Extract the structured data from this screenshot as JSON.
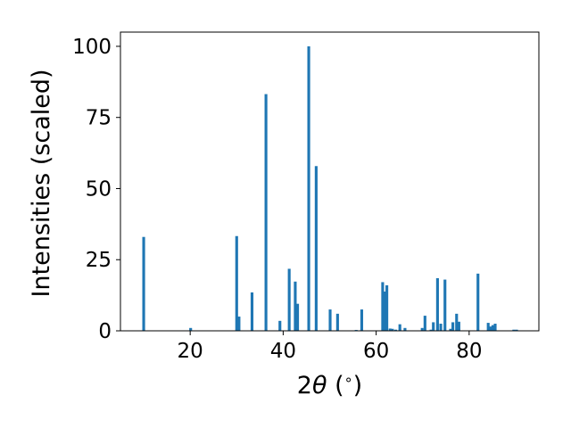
{
  "chart_data": {
    "type": "bar",
    "xlabel_prefix": "2",
    "xlabel_theta": "θ",
    "xlabel_suffix": " (",
    "xlabel_degree": "∘",
    "xlabel_close": ")",
    "ylabel": "Intensities (scaled)",
    "xlim": [
      5,
      95
    ],
    "ylim": [
      0,
      105
    ],
    "x_ticks": [
      20,
      40,
      60,
      80
    ],
    "y_ticks": [
      0,
      25,
      50,
      75,
      100
    ],
    "bar_width_data": 0.6,
    "bar_color": "#1f77b4",
    "grid": false,
    "x": [
      10.0,
      20.1,
      30.0,
      30.5,
      33.3,
      36.3,
      39.3,
      41.3,
      42.6,
      43.1,
      45.5,
      47.1,
      50.1,
      51.7,
      55.7,
      56.9,
      61.4,
      61.8,
      62.3,
      63.0,
      63.5,
      64.2,
      65.1,
      66.2,
      69.9,
      70.5,
      71.8,
      72.3,
      73.2,
      73.9,
      74.8,
      76.0,
      76.5,
      77.3,
      77.8,
      81.9,
      84.1,
      84.6,
      85.1,
      85.6,
      89.6,
      90.2
    ],
    "values": [
      33.0,
      1.0,
      33.3,
      5.0,
      13.5,
      83.2,
      3.5,
      21.8,
      17.3,
      9.5,
      100.0,
      57.9,
      7.5,
      6.0,
      0.3,
      7.5,
      17.1,
      13.8,
      16.0,
      0.8,
      0.7,
      0.4,
      2.3,
      1.0,
      1.0,
      5.3,
      0.4,
      3.0,
      18.5,
      2.5,
      18.0,
      0.7,
      3.0,
      6.0,
      3.2,
      20.1,
      2.8,
      1.5,
      2.0,
      2.5,
      0.4,
      0.4
    ]
  }
}
